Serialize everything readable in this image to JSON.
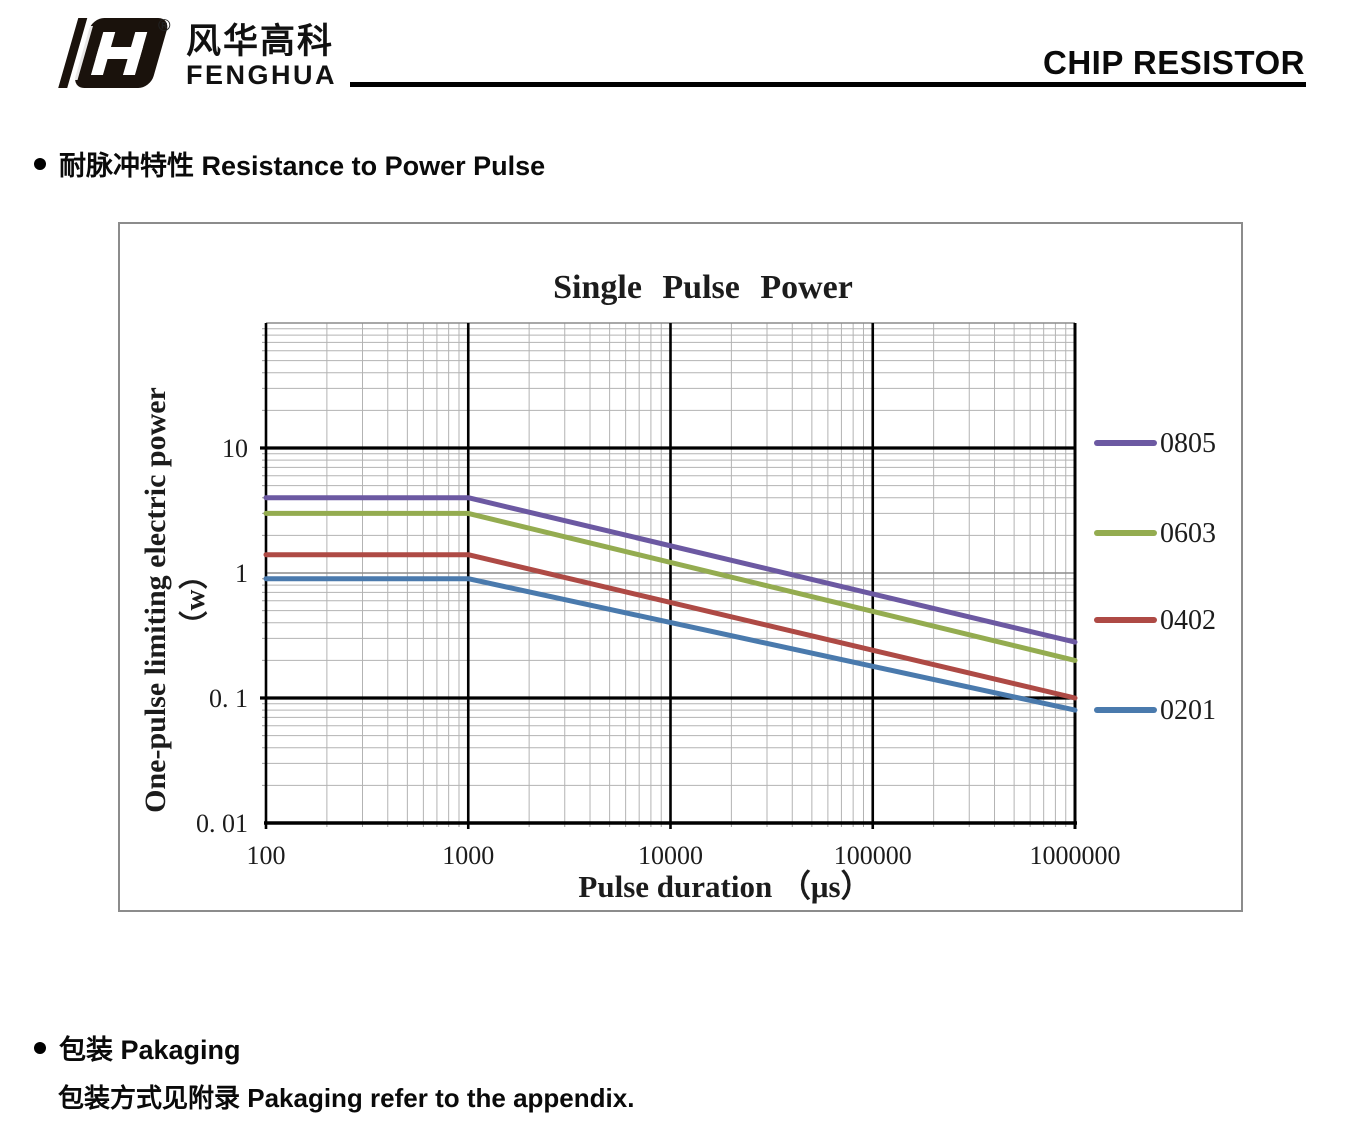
{
  "header": {
    "brand_cn": "风华高科",
    "brand_en": "FENGHUA",
    "registered_mark": "®",
    "doc_title": "CHIP RESISTOR"
  },
  "sections": {
    "pulse_heading": "耐脉冲特性 Resistance to Power Pulse",
    "packaging_heading": "包装 Pakaging",
    "packaging_note": "包装方式见附录 Pakaging refer to the appendix."
  },
  "chart_data": {
    "type": "line",
    "title": "Single Pulse Power",
    "xlabel": "Pulse duration （μs）",
    "ylabel": "One-pulse limiting electric power",
    "ylabel_unit": "（w）",
    "x_scale": "log",
    "y_scale": "log",
    "xlim": [
      100,
      1000000
    ],
    "ylim": [
      0.01,
      100
    ],
    "x_tick_labels": [
      "100",
      "1000",
      "10000",
      "100000",
      "1000000"
    ],
    "x_tick_values": [
      100,
      1000,
      10000,
      100000,
      1000000
    ],
    "y_tick_labels": [
      "10",
      "1",
      "0. 1",
      "0. 01"
    ],
    "y_tick_values": [
      10,
      1,
      0.1,
      0.01
    ],
    "grid": "log minor gridlines both axes; black major lines at x=1000,10000,100000,1000000 and y=10,0.1",
    "legend_position": "right",
    "series": [
      {
        "name": "0805",
        "color": "#6c59a2",
        "points": [
          [
            100,
            4
          ],
          [
            1000,
            4
          ],
          [
            1000000,
            0.28
          ]
        ]
      },
      {
        "name": "0603",
        "color": "#94ac50",
        "points": [
          [
            100,
            3
          ],
          [
            1000,
            3
          ],
          [
            1000000,
            0.2
          ]
        ]
      },
      {
        "name": "0402",
        "color": "#ae4a45",
        "points": [
          [
            100,
            1.4
          ],
          [
            1000,
            1.4
          ],
          [
            1000000,
            0.1
          ]
        ]
      },
      {
        "name": "0201",
        "color": "#4a7aad",
        "points": [
          [
            100,
            0.9
          ],
          [
            1000,
            0.9
          ],
          [
            1000000,
            0.08
          ]
        ]
      }
    ]
  }
}
